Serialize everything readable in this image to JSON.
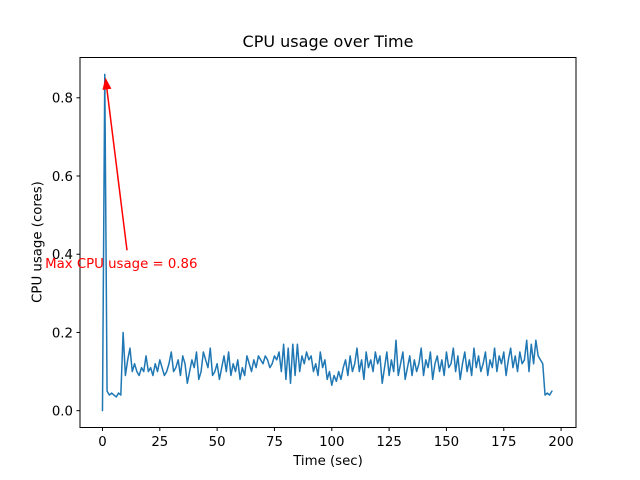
{
  "chart_data": {
    "type": "line",
    "title": "CPU usage over Time",
    "xlabel": "Time (sec)",
    "ylabel": "CPU usage (cores)",
    "grid": false,
    "legend": null,
    "line_color": "#1f77b4",
    "line_width": 1.5,
    "xlim": [
      -9.8,
      206.5
    ],
    "ylim": [
      -0.043,
      0.903
    ],
    "xticks": [
      0,
      25,
      50,
      75,
      100,
      125,
      150,
      175,
      200
    ],
    "xtick_labels": [
      "0",
      "25",
      "50",
      "75",
      "100",
      "125",
      "150",
      "175",
      "200"
    ],
    "yticks": [
      0.0,
      0.2,
      0.4,
      0.6,
      0.8
    ],
    "ytick_labels": [
      "0.0",
      "0.2",
      "0.4",
      "0.6",
      "0.8"
    ],
    "max_value": 0.86,
    "annotation": {
      "text": "Max CPU usage = 0.86",
      "color": "#ff0000",
      "xy": [
        1.3,
        0.852
      ],
      "xytext": [
        10.7,
        0.41
      ],
      "text_xy": [
        -25,
        0.393
      ]
    },
    "x": [
      0,
      1,
      2,
      3,
      4,
      5,
      6,
      7,
      8,
      9,
      10,
      11,
      12,
      13,
      14,
      15,
      16,
      17,
      18,
      19,
      20,
      21,
      22,
      23,
      24,
      25,
      26,
      27,
      28,
      29,
      30,
      31,
      32,
      33,
      34,
      35,
      36,
      37,
      38,
      39,
      40,
      41,
      42,
      43,
      44,
      45,
      46,
      47,
      48,
      49,
      50,
      51,
      52,
      53,
      54,
      55,
      56,
      57,
      58,
      59,
      60,
      61,
      62,
      63,
      64,
      65,
      66,
      67,
      68,
      69,
      70,
      71,
      72,
      73,
      74,
      75,
      76,
      77,
      78,
      79,
      80,
      81,
      82,
      83,
      84,
      85,
      86,
      87,
      88,
      89,
      90,
      91,
      92,
      93,
      94,
      95,
      96,
      97,
      98,
      99,
      100,
      101,
      102,
      103,
      104,
      105,
      106,
      107,
      108,
      109,
      110,
      111,
      112,
      113,
      114,
      115,
      116,
      117,
      118,
      119,
      120,
      121,
      122,
      123,
      124,
      125,
      126,
      127,
      128,
      129,
      130,
      131,
      132,
      133,
      134,
      135,
      136,
      137,
      138,
      139,
      140,
      141,
      142,
      143,
      144,
      145,
      146,
      147,
      148,
      149,
      150,
      151,
      152,
      153,
      154,
      155,
      156,
      157,
      158,
      159,
      160,
      161,
      162,
      163,
      164,
      165,
      166,
      167,
      168,
      169,
      170,
      171,
      172,
      173,
      174,
      175,
      176,
      177,
      178,
      179,
      180,
      181,
      182,
      183,
      184,
      185,
      186,
      187,
      188,
      189,
      190,
      191,
      192,
      193,
      194,
      195,
      196
    ],
    "y": [
      0.0,
      0.86,
      0.05,
      0.04,
      0.045,
      0.04,
      0.035,
      0.045,
      0.04,
      0.2,
      0.09,
      0.13,
      0.16,
      0.1,
      0.12,
      0.1,
      0.09,
      0.11,
      0.1,
      0.14,
      0.1,
      0.11,
      0.09,
      0.12,
      0.1,
      0.13,
      0.11,
      0.09,
      0.1,
      0.12,
      0.15,
      0.1,
      0.11,
      0.13,
      0.09,
      0.14,
      0.12,
      0.07,
      0.1,
      0.13,
      0.11,
      0.15,
      0.08,
      0.1,
      0.15,
      0.13,
      0.11,
      0.16,
      0.09,
      0.1,
      0.12,
      0.08,
      0.11,
      0.14,
      0.1,
      0.15,
      0.09,
      0.12,
      0.1,
      0.13,
      0.08,
      0.11,
      0.09,
      0.14,
      0.12,
      0.1,
      0.13,
      0.11,
      0.14,
      0.13,
      0.12,
      0.14,
      0.13,
      0.11,
      0.12,
      0.14,
      0.13,
      0.15,
      0.1,
      0.17,
      0.08,
      0.16,
      0.07,
      0.17,
      0.09,
      0.17,
      0.1,
      0.14,
      0.12,
      0.15,
      0.13,
      0.14,
      0.1,
      0.12,
      0.09,
      0.15,
      0.11,
      0.13,
      0.08,
      0.1,
      0.065,
      0.09,
      0.075,
      0.1,
      0.08,
      0.11,
      0.13,
      0.09,
      0.14,
      0.1,
      0.12,
      0.16,
      0.1,
      0.13,
      0.08,
      0.15,
      0.11,
      0.13,
      0.1,
      0.15,
      0.12,
      0.14,
      0.07,
      0.11,
      0.15,
      0.09,
      0.13,
      0.1,
      0.18,
      0.09,
      0.12,
      0.15,
      0.08,
      0.11,
      0.14,
      0.09,
      0.13,
      0.1,
      0.12,
      0.16,
      0.09,
      0.13,
      0.11,
      0.15,
      0.08,
      0.12,
      0.14,
      0.1,
      0.13,
      0.09,
      0.15,
      0.11,
      0.12,
      0.16,
      0.1,
      0.14,
      0.08,
      0.12,
      0.15,
      0.1,
      0.13,
      0.09,
      0.16,
      0.11,
      0.14,
      0.1,
      0.12,
      0.15,
      0.09,
      0.13,
      0.11,
      0.16,
      0.1,
      0.14,
      0.12,
      0.15,
      0.09,
      0.13,
      0.16,
      0.11,
      0.14,
      0.1,
      0.15,
      0.12,
      0.13,
      0.18,
      0.1,
      0.17,
      0.12,
      0.18,
      0.14,
      0.13,
      0.12,
      0.04,
      0.045,
      0.04,
      0.05
    ]
  }
}
